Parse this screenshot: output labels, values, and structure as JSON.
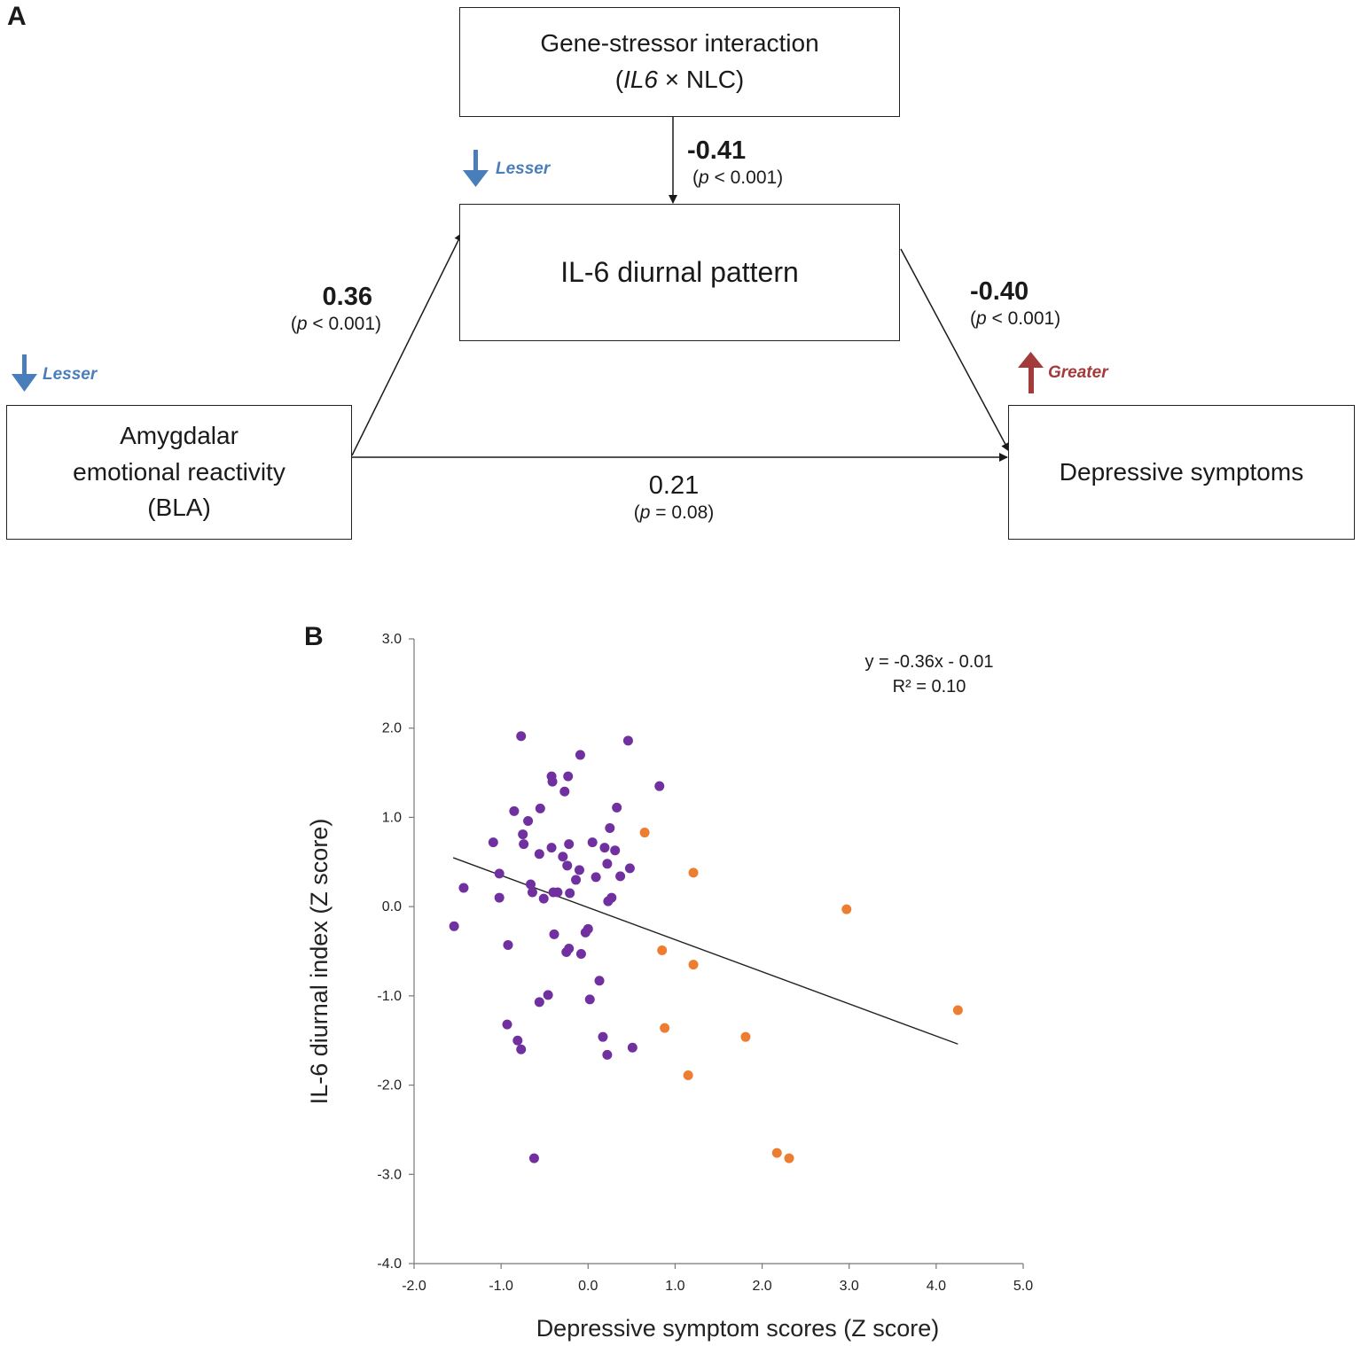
{
  "panel_a": {
    "label": "A",
    "boxes": {
      "gene_stressor": {
        "line1": "Gene-stressor interaction",
        "paren_open": "(",
        "gene": "IL6",
        "rest": " × NLC)"
      },
      "il6": {
        "text": "IL-6 diurnal pattern"
      },
      "amygdala": {
        "line1": "Amygdalar",
        "line2": "emotional reactivity",
        "line3": "(BLA)"
      },
      "depressive": {
        "text": "Depressive symptoms"
      }
    },
    "paths": {
      "gene_to_il6": {
        "coef": "-0.41",
        "p_open": "(",
        "p_italic": "p",
        "p_rest": " < 0.001)"
      },
      "amyg_to_il6": {
        "coef": "0.36",
        "p_open": "(",
        "p_italic": "p",
        "p_rest": " < 0.001)"
      },
      "il6_to_dep": {
        "coef": "-0.40",
        "p_open": "(",
        "p_italic": "p",
        "p_rest": " < 0.001)"
      },
      "amyg_to_dep": {
        "coef": "0.21",
        "p_open": "(",
        "p_italic": "p",
        "p_rest": " = 0.08)"
      }
    },
    "indicators": {
      "il6": {
        "text": "Lesser",
        "direction": "down",
        "color": "#4a7ebb"
      },
      "amygdala": {
        "text": "Lesser",
        "direction": "down",
        "color": "#4a7ebb"
      },
      "depressive": {
        "text": "Greater",
        "direction": "up",
        "color": "#a33b3b"
      }
    }
  },
  "panel_b": {
    "label": "B",
    "equation": "y = -0.36x - 0.01",
    "r_squared": "R² = 0.10"
  },
  "chart_data": {
    "type": "scatter",
    "title": "",
    "xlabel": "Depressive symptom scores (Z score)",
    "ylabel": "IL-6 diurnal index  (Z score)",
    "xlim": [
      -2.0,
      5.0
    ],
    "ylim": [
      -4.0,
      3.0
    ],
    "xticks": [
      -2.0,
      -1.0,
      0.0,
      1.0,
      2.0,
      3.0,
      4.0,
      5.0
    ],
    "yticks": [
      3.0,
      2.0,
      1.0,
      0.0,
      -1.0,
      -2.0,
      -3.0,
      -4.0
    ],
    "xtick_labels": [
      "-2.0",
      "-1.0",
      "0.0",
      "1.0",
      "2.0",
      "3.0",
      "4.0",
      "5.0"
    ],
    "ytick_labels": [
      "3.0",
      "2.0",
      "1.0",
      "0.0",
      "-1.0",
      "-2.0",
      "-3.0",
      "-4.0"
    ],
    "trendline": {
      "slope": -0.36,
      "intercept": -0.01,
      "x_range": [
        -1.55,
        4.25
      ]
    },
    "series": [
      {
        "name": "purple",
        "color": "#7030a0",
        "points": [
          [
            -0.77,
            1.91
          ],
          [
            0.46,
            1.86
          ],
          [
            -0.09,
            1.7
          ],
          [
            0.82,
            1.35
          ],
          [
            -0.42,
            1.46
          ],
          [
            -0.23,
            1.46
          ],
          [
            -0.41,
            1.4
          ],
          [
            -0.27,
            1.29
          ],
          [
            -0.85,
            1.07
          ],
          [
            -0.55,
            1.1
          ],
          [
            0.33,
            1.11
          ],
          [
            -0.69,
            0.96
          ],
          [
            0.25,
            0.88
          ],
          [
            -0.75,
            0.81
          ],
          [
            -1.09,
            0.72
          ],
          [
            0.05,
            0.72
          ],
          [
            -0.74,
            0.7
          ],
          [
            -0.22,
            0.7
          ],
          [
            0.19,
            0.66
          ],
          [
            0.31,
            0.63
          ],
          [
            -0.42,
            0.66
          ],
          [
            -0.56,
            0.59
          ],
          [
            -0.29,
            0.56
          ],
          [
            -0.24,
            0.46
          ],
          [
            0.22,
            0.48
          ],
          [
            0.48,
            0.43
          ],
          [
            -0.1,
            0.41
          ],
          [
            -1.02,
            0.37
          ],
          [
            0.09,
            0.33
          ],
          [
            0.37,
            0.34
          ],
          [
            -0.14,
            0.3
          ],
          [
            -1.43,
            0.21
          ],
          [
            -0.66,
            0.25
          ],
          [
            -0.64,
            0.16
          ],
          [
            -0.4,
            0.16
          ],
          [
            -0.35,
            0.16
          ],
          [
            -0.21,
            0.15
          ],
          [
            -0.51,
            0.09
          ],
          [
            0.27,
            0.1
          ],
          [
            -1.02,
            0.1
          ],
          [
            0.23,
            0.06
          ],
          [
            -1.54,
            -0.22
          ],
          [
            0.0,
            -0.25
          ],
          [
            -0.03,
            -0.29
          ],
          [
            -0.39,
            -0.31
          ],
          [
            -0.22,
            -0.47
          ],
          [
            -0.25,
            -0.51
          ],
          [
            -0.08,
            -0.53
          ],
          [
            -0.92,
            -0.43
          ],
          [
            0.13,
            -0.83
          ],
          [
            -0.46,
            -0.99
          ],
          [
            0.02,
            -1.04
          ],
          [
            -0.56,
            -1.07
          ],
          [
            -0.93,
            -1.32
          ],
          [
            0.17,
            -1.46
          ],
          [
            -0.81,
            -1.5
          ],
          [
            -0.77,
            -1.6
          ],
          [
            0.51,
            -1.58
          ],
          [
            0.22,
            -1.66
          ],
          [
            -0.62,
            -2.82
          ]
        ]
      },
      {
        "name": "orange",
        "color": "#ed7d31",
        "points": [
          [
            0.65,
            0.83
          ],
          [
            1.21,
            0.38
          ],
          [
            2.97,
            -0.03
          ],
          [
            0.85,
            -0.49
          ],
          [
            1.21,
            -0.65
          ],
          [
            0.88,
            -1.36
          ],
          [
            1.81,
            -1.46
          ],
          [
            1.15,
            -1.89
          ],
          [
            2.17,
            -2.76
          ],
          [
            2.31,
            -2.82
          ],
          [
            4.25,
            -1.16
          ]
        ]
      }
    ]
  }
}
